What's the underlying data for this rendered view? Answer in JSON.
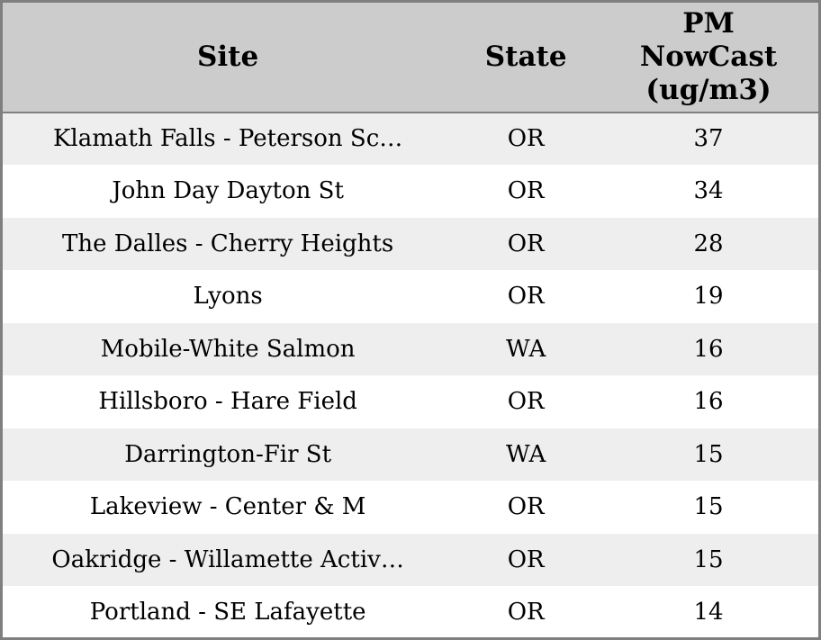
{
  "colors": {
    "header_bg": "#cccccc",
    "row_stripe": "#eeeeee",
    "row_plain": "#ffffff",
    "border": "#7f7f7f",
    "text": "#000000"
  },
  "table": {
    "columns": {
      "site": "Site",
      "state": "State",
      "pm": "PM\nNowCast\n(ug/m3)"
    },
    "rows": [
      {
        "site": "Klamath Falls - Peterson Sc…",
        "state": "OR",
        "pm": "37"
      },
      {
        "site": "John Day Dayton St",
        "state": "OR",
        "pm": "34"
      },
      {
        "site": "The Dalles - Cherry Heights",
        "state": "OR",
        "pm": "28"
      },
      {
        "site": "Lyons",
        "state": "OR",
        "pm": "19"
      },
      {
        "site": "Mobile-White Salmon",
        "state": "WA",
        "pm": "16"
      },
      {
        "site": "Hillsboro - Hare Field",
        "state": "OR",
        "pm": "16"
      },
      {
        "site": "Darrington-Fir St",
        "state": "WA",
        "pm": "15"
      },
      {
        "site": "Lakeview - Center & M",
        "state": "OR",
        "pm": "15"
      },
      {
        "site": "Oakridge - Willamette Activ…",
        "state": "OR",
        "pm": "15"
      },
      {
        "site": "Portland - SE Lafayette",
        "state": "OR",
        "pm": "14"
      }
    ]
  }
}
